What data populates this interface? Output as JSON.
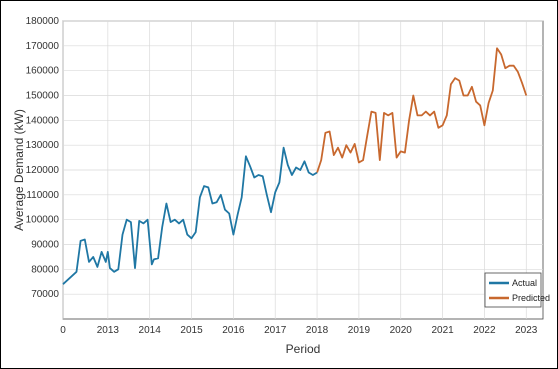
{
  "chart_data": {
    "type": "line",
    "title": "",
    "xlabel": "Period",
    "ylabel": "Average Demand (kW)",
    "xlim": [
      0,
      2023.4
    ],
    "ylim": [
      60000,
      180000
    ],
    "x_ticks": [
      0,
      2013,
      2014,
      2015,
      2016,
      2017,
      2018,
      2019,
      2020,
      2021,
      2022,
      2023
    ],
    "y_ticks": [
      70000,
      80000,
      90000,
      100000,
      110000,
      120000,
      130000,
      140000,
      150000,
      160000,
      170000,
      180000
    ],
    "grid": true,
    "legend_position": "bottom-right",
    "series": [
      {
        "name": "Actual",
        "color": "#1f77a4",
        "x": [
          0,
          2012.25,
          2012.35,
          2012.45,
          2012.55,
          2012.65,
          2012.75,
          2012.85,
          2012.95,
          2013.0,
          2013.05,
          2013.15,
          2013.25,
          2013.35,
          2013.45,
          2013.55,
          2013.65,
          2013.75,
          2013.85,
          2013.95,
          2014.05,
          2014.1,
          2014.2,
          2014.3,
          2014.4,
          2014.5,
          2014.6,
          2014.7,
          2014.8,
          2014.9,
          2015.0,
          2015.1,
          2015.2,
          2015.3,
          2015.4,
          2015.5,
          2015.6,
          2015.7,
          2015.8,
          2015.9,
          2016.0,
          2016.1,
          2016.2,
          2016.3,
          2016.4,
          2016.5,
          2016.6,
          2016.7,
          2016.8,
          2016.9,
          2017.0,
          2017.1,
          2017.2,
          2017.3,
          2017.4,
          2017.5,
          2017.6,
          2017.7,
          2017.8,
          2017.9,
          2018.0
        ],
        "y": [
          74000,
          79000,
          91500,
          92000,
          83000,
          85000,
          81000,
          87000,
          83000,
          87000,
          80500,
          79000,
          80000,
          94000,
          100000,
          99000,
          80500,
          99500,
          98500,
          100000,
          82000,
          84000,
          84500,
          97000,
          106500,
          99000,
          100000,
          98500,
          100000,
          94000,
          92500,
          95000,
          109000,
          113500,
          113000,
          106500,
          107000,
          110000,
          104000,
          102500,
          94000,
          102000,
          109000,
          125500,
          121500,
          117000,
          118000,
          117500,
          110000,
          103000,
          111000,
          115000,
          129000,
          122000,
          118000,
          121000,
          120000,
          123500,
          119000,
          118000,
          119000
        ]
      },
      {
        "name": "Predicted",
        "color": "#c8682e",
        "x": [
          2018.0,
          2018.1,
          2018.2,
          2018.3,
          2018.4,
          2018.5,
          2018.6,
          2018.7,
          2018.8,
          2018.9,
          2019.0,
          2019.1,
          2019.2,
          2019.3,
          2019.4,
          2019.5,
          2019.6,
          2019.7,
          2019.8,
          2019.9,
          2020.0,
          2020.1,
          2020.2,
          2020.3,
          2020.4,
          2020.5,
          2020.6,
          2020.7,
          2020.8,
          2020.9,
          2021.0,
          2021.1,
          2021.2,
          2021.3,
          2021.4,
          2021.5,
          2021.6,
          2021.7,
          2021.8,
          2021.9,
          2022.0,
          2022.1,
          2022.2,
          2022.3,
          2022.4,
          2022.5,
          2022.6,
          2022.7,
          2022.8,
          2022.9,
          2023.0
        ],
        "y": [
          119000,
          124000,
          135000,
          135500,
          126000,
          129000,
          125000,
          130000,
          127000,
          130500,
          123000,
          124000,
          134000,
          143500,
          143000,
          124000,
          143000,
          142000,
          143000,
          125000,
          127500,
          127000,
          140000,
          150000,
          142000,
          142000,
          143500,
          142000,
          143500,
          137000,
          138000,
          142000,
          154500,
          157000,
          156000,
          150000,
          150000,
          153500,
          147500,
          146000,
          138000,
          147000,
          152000,
          169000,
          166500,
          161000,
          162000,
          162000,
          159500,
          155000,
          150000
        ]
      }
    ]
  }
}
